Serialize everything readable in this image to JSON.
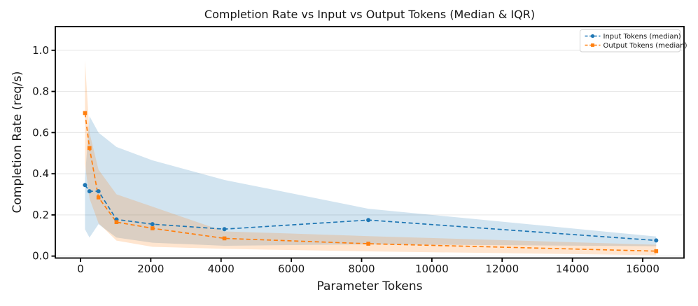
{
  "chart_data": {
    "type": "line",
    "title": "Completion Rate vs Input vs Output Tokens (Median & IQR)",
    "xlabel": "Parameter Tokens",
    "ylabel": "Completion Rate (req/s)",
    "x": [
      128,
      256,
      512,
      1024,
      2048,
      4096,
      8192,
      16384
    ],
    "series": [
      {
        "name": "Input Tokens (median)",
        "color": "#1f77b4",
        "marker": "circle",
        "linestyle": "dashed",
        "median": [
          0.345,
          0.315,
          0.315,
          0.178,
          0.155,
          0.131,
          0.175,
          0.076
        ],
        "iqr_low": [
          0.13,
          0.09,
          0.155,
          0.09,
          0.065,
          0.05,
          0.057,
          0.048
        ],
        "iqr_high": [
          0.38,
          0.68,
          0.6,
          0.53,
          0.465,
          0.37,
          0.23,
          0.095
        ]
      },
      {
        "name": "Output Tokens (median)",
        "color": "#ff7f0e",
        "marker": "square",
        "linestyle": "dashed",
        "median": [
          0.695,
          0.525,
          0.285,
          0.165,
          0.135,
          0.086,
          0.06,
          0.024
        ],
        "iqr_low": [
          0.45,
          0.28,
          0.16,
          0.075,
          0.045,
          0.035,
          0.023,
          0.004
        ],
        "iqr_high": [
          0.95,
          0.6,
          0.42,
          0.3,
          0.24,
          0.12,
          0.097,
          0.055
        ]
      }
    ],
    "band_opacity": 0.2,
    "x_tick_values": [
      0,
      2000,
      4000,
      6000,
      8000,
      10000,
      12000,
      14000,
      16000
    ],
    "x_tick_labels": [
      "0",
      "2000",
      "4000",
      "6000",
      "8000",
      "10000",
      "12000",
      "14000",
      "16000"
    ],
    "y_tick_values": [
      0.0,
      0.2,
      0.4,
      0.6,
      0.8,
      1.0
    ],
    "y_tick_labels": [
      "0.0",
      "0.2",
      "0.4",
      "0.6",
      "0.8",
      "1.0"
    ],
    "xlim": [
      -717,
      17175
    ],
    "ylim": [
      -0.0095,
      1.115
    ],
    "grid": true,
    "legend": {
      "position": "upper right",
      "entries": [
        "Input Tokens (median)",
        "Output Tokens (median)"
      ]
    }
  }
}
